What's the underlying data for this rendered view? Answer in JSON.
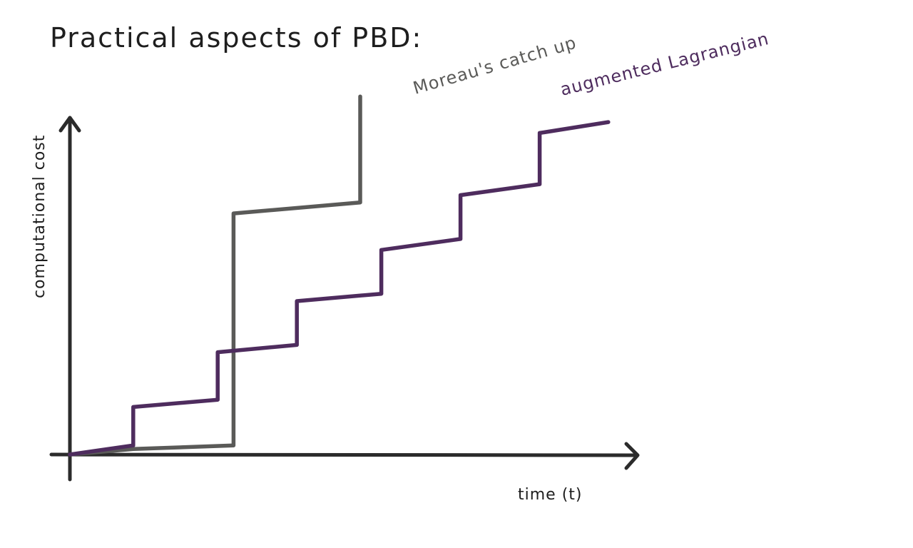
{
  "chart_data": {
    "type": "line",
    "title": "Practical aspects of PBD:",
    "xlabel": "time (t)",
    "ylabel": "computational cost",
    "xlim": [
      0,
      10
    ],
    "ylim": [
      0,
      10
    ],
    "x_ticks_shown": false,
    "y_ticks_shown": false,
    "grid": false,
    "colors": {
      "axes": "#2b2b2b",
      "title": "#1e1e1e"
    },
    "series": [
      {
        "name": "Moreau's catch up",
        "color": "#5a5a58",
        "x": [
          0.0,
          1.2,
          3.1,
          3.1,
          5.5,
          5.5
        ],
        "y": [
          0.0,
          0.15,
          0.25,
          6.6,
          6.9,
          9.8
        ]
      },
      {
        "name": "augmented Lagrangian",
        "color": "#4e2c5e",
        "x": [
          0.0,
          1.2,
          1.2,
          2.8,
          2.8,
          4.3,
          4.3,
          5.9,
          5.9,
          7.4,
          7.4,
          8.9,
          8.9,
          10.2
        ],
        "y": [
          0.0,
          0.25,
          1.3,
          1.5,
          2.8,
          3.0,
          4.2,
          4.4,
          5.6,
          5.9,
          7.1,
          7.4,
          8.8,
          9.1
        ]
      }
    ]
  }
}
